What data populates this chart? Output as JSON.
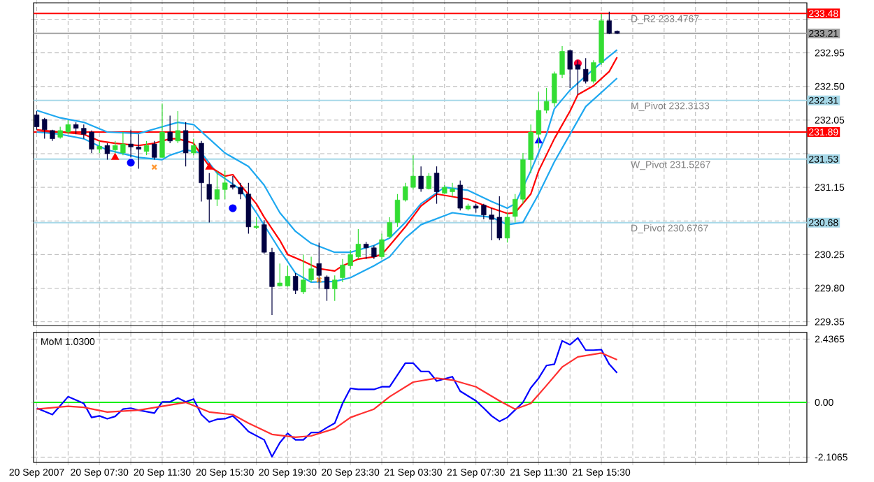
{
  "chart_data": [
    {
      "type": "candlestick",
      "grid": true,
      "tick_labels": "y",
      "x": [
        "2007-09-20T03:30",
        "2007-09-20T04:00",
        "2007-09-20T04:30",
        "2007-09-20T05:00",
        "2007-09-20T05:30",
        "2007-09-20T06:00",
        "2007-09-20T06:30",
        "2007-09-20T07:00",
        "2007-09-20T07:30",
        "2007-09-20T08:00",
        "2007-09-20T08:30",
        "2007-09-20T09:00",
        "2007-09-20T09:30",
        "2007-09-20T10:00",
        "2007-09-20T10:30",
        "2007-09-20T11:00",
        "2007-09-20T11:30",
        "2007-09-20T12:00",
        "2007-09-20T12:30",
        "2007-09-20T13:00",
        "2007-09-20T13:30",
        "2007-09-20T14:00",
        "2007-09-20T14:30",
        "2007-09-20T15:00",
        "2007-09-20T15:30",
        "2007-09-20T16:00",
        "2007-09-20T16:30",
        "2007-09-20T17:00",
        "2007-09-20T17:30",
        "2007-09-20T18:00",
        "2007-09-20T18:30",
        "2007-09-20T19:00",
        "2007-09-20T19:30",
        "2007-09-20T20:00",
        "2007-09-20T20:30",
        "2007-09-20T21:00",
        "2007-09-20T21:30",
        "2007-09-20T22:00",
        "2007-09-20T22:30",
        "2007-09-20T23:00",
        "2007-09-20T23:30",
        "2007-09-21T00:00",
        "2007-09-21T00:30",
        "2007-09-21T01:00",
        "2007-09-21T01:30",
        "2007-09-21T02:00",
        "2007-09-21T02:30",
        "2007-09-21T03:00",
        "2007-09-21T03:30",
        "2007-09-21T04:00",
        "2007-09-21T04:30",
        "2007-09-21T05:00",
        "2007-09-21T05:30",
        "2007-09-21T06:00",
        "2007-09-21T06:30",
        "2007-09-21T07:00",
        "2007-09-21T07:30",
        "2007-09-21T08:00",
        "2007-09-21T08:30",
        "2007-09-21T09:00",
        "2007-09-21T09:30",
        "2007-09-21T10:00",
        "2007-09-21T10:30",
        "2007-09-21T11:00",
        "2007-09-21T11:30",
        "2007-09-21T12:00",
        "2007-09-21T12:30",
        "2007-09-21T13:00",
        "2007-09-21T13:30",
        "2007-09-21T14:00",
        "2007-09-21T14:30",
        "2007-09-21T15:00",
        "2007-09-21T15:30",
        "2007-09-21T16:00",
        "2007-09-21T16:30"
      ],
      "ohlc": [
        [
          232.12,
          232.17,
          231.92,
          231.96
        ],
        [
          232.06,
          232.08,
          231.8,
          231.92
        ],
        [
          231.91,
          231.92,
          231.77,
          231.8
        ],
        [
          231.82,
          231.96,
          231.8,
          231.91
        ],
        [
          231.89,
          232.05,
          231.86,
          231.99
        ],
        [
          231.99,
          232.02,
          231.86,
          231.94
        ],
        [
          231.94,
          231.99,
          231.8,
          231.86
        ],
        [
          231.89,
          231.91,
          231.61,
          231.66
        ],
        [
          231.66,
          231.77,
          231.61,
          231.7
        ],
        [
          231.71,
          231.74,
          231.52,
          231.6
        ],
        [
          231.65,
          231.77,
          231.61,
          231.71
        ],
        [
          231.61,
          231.89,
          231.58,
          231.73
        ],
        [
          231.73,
          231.92,
          231.55,
          231.69
        ],
        [
          231.69,
          231.86,
          231.4,
          231.66
        ],
        [
          231.63,
          231.77,
          231.58,
          231.71
        ],
        [
          231.73,
          231.77,
          231.52,
          231.55
        ],
        [
          231.55,
          232.27,
          231.55,
          231.89
        ],
        [
          231.89,
          232.11,
          231.74,
          231.77
        ],
        [
          231.77,
          232.17,
          231.74,
          231.91
        ],
        [
          231.91,
          232.02,
          231.43,
          231.61
        ],
        [
          231.61,
          231.8,
          231.58,
          231.71
        ],
        [
          231.74,
          231.77,
          230.96,
          231.21
        ],
        [
          231.19,
          231.34,
          230.68,
          230.99
        ],
        [
          230.99,
          231.37,
          230.9,
          231.12
        ],
        [
          231.12,
          231.37,
          230.99,
          231.21
        ],
        [
          231.18,
          231.3,
          231.12,
          231.15
        ],
        [
          231.15,
          231.21,
          230.99,
          231.06
        ],
        [
          231.06,
          231.21,
          230.53,
          230.62
        ],
        [
          230.61,
          230.75,
          230.59,
          230.63
        ],
        [
          230.65,
          230.71,
          230.26,
          230.28
        ],
        [
          230.28,
          230.34,
          229.44,
          229.82
        ],
        [
          229.83,
          230.13,
          229.82,
          229.87
        ],
        [
          229.83,
          230.1,
          229.82,
          229.96
        ],
        [
          229.96,
          230.0,
          229.72,
          229.77
        ],
        [
          229.75,
          230.25,
          229.72,
          229.91
        ],
        [
          229.91,
          230.22,
          229.88,
          230.06
        ],
        [
          230.13,
          230.41,
          229.79,
          229.97
        ],
        [
          229.95,
          229.97,
          229.63,
          229.79
        ],
        [
          229.79,
          229.97,
          229.63,
          229.91
        ],
        [
          229.94,
          230.19,
          229.88,
          230.11
        ],
        [
          230.1,
          230.31,
          230.06,
          230.25
        ],
        [
          230.22,
          230.59,
          230.19,
          230.39
        ],
        [
          230.39,
          230.42,
          230.19,
          230.34
        ],
        [
          230.34,
          230.37,
          230.19,
          230.22
        ],
        [
          230.22,
          230.53,
          230.19,
          230.45
        ],
        [
          230.49,
          230.75,
          230.47,
          230.68
        ],
        [
          230.68,
          231.06,
          230.62,
          230.98
        ],
        [
          230.98,
          231.21,
          230.96,
          231.16
        ],
        [
          231.15,
          231.58,
          231.12,
          231.3
        ],
        [
          231.3,
          231.43,
          231.09,
          231.13
        ],
        [
          231.13,
          231.34,
          231.12,
          231.3
        ],
        [
          231.34,
          231.43,
          230.93,
          231.09
        ],
        [
          231.07,
          231.18,
          231.06,
          231.15
        ],
        [
          231.09,
          231.21,
          231.03,
          231.13
        ],
        [
          231.18,
          231.24,
          230.84,
          230.87
        ],
        [
          230.86,
          230.93,
          230.84,
          230.9
        ],
        [
          230.9,
          230.93,
          230.81,
          230.87
        ],
        [
          230.91,
          230.93,
          230.72,
          230.78
        ],
        [
          230.78,
          230.87,
          230.44,
          230.72
        ],
        [
          230.75,
          231.03,
          230.44,
          230.47
        ],
        [
          230.47,
          230.81,
          230.41,
          230.75
        ],
        [
          230.76,
          231.06,
          230.68,
          230.99
        ],
        [
          230.99,
          231.61,
          230.93,
          231.52
        ],
        [
          231.52,
          231.99,
          231.34,
          231.89
        ],
        [
          231.86,
          232.42,
          231.68,
          232.18
        ],
        [
          232.18,
          232.48,
          232.14,
          232.3
        ],
        [
          232.28,
          232.7,
          232.23,
          232.67
        ],
        [
          232.66,
          233.04,
          232.61,
          232.97
        ],
        [
          232.98,
          232.99,
          232.48,
          232.73
        ],
        [
          232.79,
          232.85,
          232.39,
          232.73
        ],
        [
          232.73,
          232.88,
          232.54,
          232.57
        ],
        [
          232.57,
          232.85,
          232.54,
          232.82
        ],
        [
          232.82,
          233.47,
          232.79,
          233.38
        ],
        [
          233.38,
          233.5,
          233.2,
          233.21
        ],
        [
          233.24,
          233.25,
          233.2,
          233.21
        ]
      ],
      "colors": [
        "#000040",
        "#000040",
        "#000040",
        "#33dd33",
        "#33dd33",
        "#000040",
        "#000040",
        "#000040",
        "#33dd33",
        "#000040",
        "#33dd33",
        "#33dd33",
        "#000040",
        "#000040",
        "#33dd33",
        "#000040",
        "#33dd33",
        "#000040",
        "#33dd33",
        "#000040",
        "#33dd33",
        "#000040",
        "#000040",
        "#33dd33",
        "#33dd33",
        "#000040",
        "#000040",
        "#000040",
        "#33dd33",
        "#000040",
        "#000040",
        "#33dd33",
        "#33dd33",
        "#000040",
        "#33dd33",
        "#33dd33",
        "#000040",
        "#000040",
        "#33dd33",
        "#33dd33",
        "#33dd33",
        "#33dd33",
        "#000040",
        "#000040",
        "#33dd33",
        "#33dd33",
        "#33dd33",
        "#33dd33",
        "#33dd33",
        "#000040",
        "#33dd33",
        "#000040",
        "#33dd33",
        "#33dd33",
        "#000040",
        "#33dd33",
        "#000040",
        "#000040",
        "#000040",
        "#000040",
        "#33dd33",
        "#33dd33",
        "#33dd33",
        "#33dd33",
        "#33dd33",
        "#33dd33",
        "#33dd33",
        "#33dd33",
        "#000040",
        "#000040",
        "#000040",
        "#33dd33",
        "#33dd33",
        "#000040",
        "#000040"
      ],
      "series": [
        {
          "type": "line",
          "color": "#1ea8f0",
          "x": [
            "2007-09-20T03:30",
            "2007-09-20T05:00",
            "2007-09-20T06:30",
            "2007-09-20T08:00",
            "2007-09-20T10:00",
            "2007-09-20T11:30",
            "2007-09-20T12:30",
            "2007-09-20T13:30",
            "2007-09-20T14:30",
            "2007-09-20T15:30",
            "2007-09-20T17:00",
            "2007-09-20T18:00",
            "2007-09-20T19:00",
            "2007-09-20T20:00",
            "2007-09-20T21:00",
            "2007-09-20T22:30",
            "2007-09-20T23:30",
            "2007-09-21T01:00",
            "2007-09-21T02:00",
            "2007-09-21T03:00",
            "2007-09-21T04:00",
            "2007-09-21T05:30",
            "2007-09-21T07:00",
            "2007-09-21T08:30",
            "2007-09-21T09:30",
            "2007-09-21T10:00",
            "2007-09-21T11:00",
            "2007-09-21T12:00",
            "2007-09-21T12:30",
            "2007-09-21T13:30",
            "2007-09-21T14:30",
            "2007-09-21T15:30",
            "2007-09-21T16:30"
          ],
          "values": [
            232.18,
            232.08,
            232.02,
            231.89,
            231.87,
            231.96,
            232.02,
            231.99,
            231.8,
            231.61,
            231.43,
            231.18,
            230.81,
            230.56,
            230.4,
            230.28,
            230.28,
            230.37,
            230.47,
            230.68,
            230.93,
            231.15,
            231.11,
            230.96,
            230.87,
            230.93,
            231.37,
            231.86,
            232.2,
            232.45,
            232.64,
            232.82,
            232.99
          ]
        },
        {
          "type": "line",
          "color": "#1ea8f0",
          "x": [
            "2007-09-20T03:30",
            "2007-09-20T05:00",
            "2007-09-20T06:30",
            "2007-09-20T08:00",
            "2007-09-20T10:00",
            "2007-09-20T11:30",
            "2007-09-20T12:00",
            "2007-09-20T13:00",
            "2007-09-20T14:00",
            "2007-09-20T15:00",
            "2007-09-20T16:30",
            "2007-09-20T17:30",
            "2007-09-20T19:00",
            "2007-09-20T20:00",
            "2007-09-20T21:00",
            "2007-09-20T22:30",
            "2007-09-20T23:30",
            "2007-09-21T01:00",
            "2007-09-21T02:00",
            "2007-09-21T03:00",
            "2007-09-21T04:00",
            "2007-09-21T06:00",
            "2007-09-21T07:00",
            "2007-09-21T08:30",
            "2007-09-21T09:30",
            "2007-09-21T10:30",
            "2007-09-21T11:30",
            "2007-09-21T12:30",
            "2007-09-21T13:30",
            "2007-09-21T14:30",
            "2007-09-21T15:30",
            "2007-09-21T16:30"
          ],
          "values": [
            231.89,
            231.86,
            231.8,
            231.65,
            231.55,
            231.52,
            231.58,
            231.65,
            231.61,
            231.34,
            231.12,
            230.81,
            230.31,
            230.0,
            229.88,
            229.89,
            229.94,
            230.1,
            230.22,
            230.47,
            230.65,
            230.81,
            230.78,
            230.75,
            230.65,
            230.68,
            231.06,
            231.49,
            231.86,
            232.23,
            232.42,
            232.61
          ]
        },
        {
          "type": "line",
          "color": "#ff0000",
          "x": [
            "2007-09-20T03:30",
            "2007-09-20T05:00",
            "2007-09-20T06:30",
            "2007-09-20T07:30",
            "2007-09-20T08:30",
            "2007-09-20T10:00",
            "2007-09-20T11:00",
            "2007-09-20T12:00",
            "2007-09-20T12:30",
            "2007-09-20T13:30",
            "2007-09-20T14:00",
            "2007-09-20T14:30",
            "2007-09-20T15:30",
            "2007-09-20T16:00",
            "2007-09-20T16:30",
            "2007-09-20T17:30",
            "2007-09-20T18:00",
            "2007-09-20T19:00",
            "2007-09-20T19:30",
            "2007-09-20T20:30",
            "2007-09-20T21:30",
            "2007-09-20T22:30",
            "2007-09-20T23:00",
            "2007-09-21T00:00",
            "2007-09-21T01:00",
            "2007-09-21T01:30",
            "2007-09-21T02:00",
            "2007-09-21T03:00",
            "2007-09-21T04:00",
            "2007-09-21T05:00",
            "2007-09-21T07:00",
            "2007-09-21T08:30",
            "2007-09-21T09:30",
            "2007-09-21T10:00",
            "2007-09-21T11:00",
            "2007-09-21T11:30",
            "2007-09-21T12:30",
            "2007-09-21T13:30",
            "2007-09-21T14:00",
            "2007-09-21T15:00",
            "2007-09-21T16:00",
            "2007-09-21T16:30"
          ],
          "values": [
            231.92,
            231.89,
            231.86,
            231.77,
            231.74,
            231.71,
            231.74,
            231.8,
            231.8,
            231.74,
            231.58,
            231.43,
            231.3,
            231.32,
            231.18,
            230.93,
            230.75,
            230.44,
            230.25,
            230.16,
            230.06,
            230.03,
            230.1,
            230.19,
            230.22,
            230.25,
            230.37,
            230.62,
            230.9,
            231.06,
            230.99,
            230.87,
            230.8,
            230.81,
            231.06,
            231.37,
            231.8,
            232.17,
            232.39,
            232.51,
            232.7,
            232.89
          ]
        },
        {
          "type": "scatter",
          "marker": "circle",
          "color": "#0000ff",
          "x": [
            "2007-09-20T09:30",
            "2007-09-20T16:00"
          ],
          "values": [
            231.48,
            230.87
          ]
        },
        {
          "type": "scatter",
          "marker": "circle",
          "color": "#ff0033",
          "x": [
            "2007-09-21T14:00"
          ],
          "values": [
            232.81
          ]
        },
        {
          "type": "scatter",
          "marker": "cross",
          "color": "#ff9933",
          "x": [
            "2007-09-20T11:00",
            "2007-09-20T21:30"
          ],
          "values": [
            231.42,
            229.91
          ]
        },
        {
          "type": "scatter",
          "marker": "triangle",
          "color": "#ff0000",
          "x": [
            "2007-09-20T08:30",
            "2007-09-20T14:30"
          ],
          "values": [
            231.55,
            231.42
          ]
        },
        {
          "type": "scatter",
          "marker": "triangle",
          "color": "#0000ff",
          "x": [
            "2007-09-21T11:30"
          ],
          "values": [
            231.77
          ]
        }
      ],
      "ref_lines": [
        {
          "axis": "y",
          "value": 233.4767,
          "label": "D_R2 233.4767",
          "color": "#ff0000"
        },
        {
          "axis": "y",
          "value": 233.21,
          "color": "#a0a0a0"
        },
        {
          "axis": "y",
          "value": 232.3133,
          "label": "M_Pivot 232.3133",
          "color": "#a6d8e8"
        },
        {
          "axis": "y",
          "value": 231.89,
          "color": "#ff0000"
        },
        {
          "axis": "y",
          "value": 231.5267,
          "label": "W_Pivot 231.5267",
          "color": "#a6d8e8"
        },
        {
          "axis": "y",
          "value": 230.6767,
          "label": "D_Pivot 230.6767",
          "color": "#a6d8e8"
        }
      ],
      "annotations": [
        "233.48",
        "233.21",
        "232.31",
        "231.89",
        "231.53",
        "230.68"
      ],
      "xlim": [
        "2007-09-20T03:18",
        "2007-09-22T04:36"
      ],
      "ylim": [
        229.3,
        233.62
      ],
      "yticks": [
        229.35,
        {
          "value": 229.8,
          "label": "229.80"
        },
        230.25,
        {
          "value": 230.7,
          "label": null
        },
        231.15,
        {
          "value": 231.6,
          "label": null
        },
        232.05,
        {
          "value": 232.5,
          "label": "232.50"
        },
        232.95,
        {
          "value": 233.4,
          "label": null
        }
      ]
    },
    {
      "type": "line",
      "title": "MoM 1.0300",
      "grid": true,
      "series": [
        {
          "color": "#0000ff",
          "x": [
            "2007-09-20T03:30",
            "2007-09-20T04:30",
            "2007-09-20T05:30",
            "2007-09-20T06:30",
            "2007-09-20T07:00",
            "2007-09-20T07:30",
            "2007-09-20T08:00",
            "2007-09-20T08:30",
            "2007-09-20T09:00",
            "2007-09-20T09:30",
            "2007-09-20T10:00",
            "2007-09-20T11:00",
            "2007-09-20T11:30",
            "2007-09-20T12:00",
            "2007-09-20T12:30",
            "2007-09-20T13:00",
            "2007-09-20T13:30",
            "2007-09-20T14:00",
            "2007-09-20T14:30",
            "2007-09-20T15:00",
            "2007-09-20T15:30",
            "2007-09-20T16:00",
            "2007-09-20T16:30",
            "2007-09-20T17:00",
            "2007-09-20T18:00",
            "2007-09-20T18:30",
            "2007-09-20T19:00",
            "2007-09-20T19:30",
            "2007-09-20T20:00",
            "2007-09-20T20:30",
            "2007-09-20T21:00",
            "2007-09-20T21:30",
            "2007-09-20T22:00",
            "2007-09-20T22:30",
            "2007-09-20T23:00",
            "2007-09-20T23:30",
            "2007-09-21T00:00",
            "2007-09-21T01:00",
            "2007-09-21T01:30",
            "2007-09-21T02:00",
            "2007-09-21T03:00",
            "2007-09-21T03:30",
            "2007-09-21T04:00",
            "2007-09-21T04:30",
            "2007-09-21T05:00",
            "2007-09-21T06:00",
            "2007-09-21T06:30",
            "2007-09-21T07:30",
            "2007-09-21T08:00",
            "2007-09-21T08:30",
            "2007-09-21T09:00",
            "2007-09-21T09:30",
            "2007-09-21T10:30",
            "2007-09-21T11:00",
            "2007-09-21T11:30",
            "2007-09-21T12:00",
            "2007-09-21T12:30",
            "2007-09-21T13:00",
            "2007-09-21T13:30",
            "2007-09-21T14:00",
            "2007-09-21T14:30",
            "2007-09-21T15:00",
            "2007-09-21T15:30",
            "2007-09-21T16:00",
            "2007-09-21T16:30"
          ],
          "values": [
            -0.22,
            -0.47,
            0.22,
            -0.04,
            -0.58,
            -0.52,
            -0.63,
            -0.54,
            -0.26,
            -0.22,
            -0.3,
            -0.41,
            0.02,
            0.02,
            0.17,
            0.02,
            0.13,
            -0.47,
            -0.75,
            -0.65,
            -0.63,
            -0.52,
            -0.8,
            -1.12,
            -1.44,
            -2.09,
            -1.55,
            -1.19,
            -1.44,
            -1.44,
            -1.16,
            -1.16,
            -0.97,
            -0.8,
            -0.04,
            0.54,
            0.5,
            0.5,
            0.6,
            0.6,
            1.51,
            1.51,
            1.19,
            1.19,
            0.82,
            0.99,
            0.43,
            0.06,
            -0.22,
            -0.52,
            -0.73,
            -0.58,
            0.0,
            0.56,
            0.93,
            1.42,
            1.47,
            2.37,
            2.22,
            2.48,
            2.01,
            2.01,
            2.03,
            1.47,
            1.14
          ]
        },
        {
          "color": "#ff3030",
          "x": [
            "2007-09-20T03:30",
            "2007-09-20T05:30",
            "2007-09-20T06:30",
            "2007-09-20T08:00",
            "2007-09-20T10:00",
            "2007-09-20T11:30",
            "2007-09-20T13:00",
            "2007-09-20T14:30",
            "2007-09-20T16:00",
            "2007-09-20T17:00",
            "2007-09-20T18:30",
            "2007-09-20T20:00",
            "2007-09-20T21:00",
            "2007-09-20T22:30",
            "2007-09-20T23:30",
            "2007-09-21T01:00",
            "2007-09-21T02:00",
            "2007-09-21T03:30",
            "2007-09-21T05:00",
            "2007-09-21T06:00",
            "2007-09-21T07:30",
            "2007-09-21T09:00",
            "2007-09-21T10:00",
            "2007-09-21T11:00",
            "2007-09-21T12:00",
            "2007-09-21T13:00",
            "2007-09-21T14:00",
            "2007-09-21T15:30",
            "2007-09-21T16:30"
          ],
          "values": [
            -0.26,
            -0.15,
            -0.19,
            -0.37,
            -0.3,
            -0.15,
            0.0,
            -0.37,
            -0.47,
            -0.8,
            -1.23,
            -1.34,
            -1.29,
            -1.01,
            -0.58,
            -0.26,
            0.22,
            0.78,
            0.93,
            0.86,
            0.6,
            0.06,
            -0.26,
            -0.04,
            0.65,
            1.36,
            1.75,
            1.9,
            1.64
          ]
        }
      ],
      "ref_lines": [
        {
          "axis": "y",
          "value": 0,
          "color": "#00ee00"
        }
      ],
      "xlim": [
        "2007-09-20T03:18",
        "2007-09-22T04:36"
      ],
      "xticks": [
        {
          "value": "2007-09-20T03:30",
          "label": "20 Sep 2007"
        },
        {
          "value": "2007-09-20T05:30",
          "label": null
        },
        {
          "value": "2007-09-20T07:30",
          "label": "20 Sep 07:30"
        },
        {
          "value": "2007-09-20T09:30",
          "label": null
        },
        {
          "value": "2007-09-20T11:30",
          "label": "20 Sep 11:30"
        },
        {
          "value": "2007-09-20T13:30",
          "label": null
        },
        {
          "value": "2007-09-20T15:30",
          "label": "20 Sep 15:30"
        },
        {
          "value": "2007-09-20T17:30",
          "label": null
        },
        {
          "value": "2007-09-20T19:30",
          "label": "20 Sep 19:30"
        },
        {
          "value": "2007-09-20T21:30",
          "label": null
        },
        {
          "value": "2007-09-20T23:30",
          "label": "20 Sep 23:30"
        },
        {
          "value": "2007-09-21T01:30",
          "label": null
        },
        {
          "value": "2007-09-21T03:30",
          "label": "21 Sep 03:30"
        },
        {
          "value": "2007-09-21T05:30",
          "label": null
        },
        {
          "value": "2007-09-21T07:30",
          "label": "21 Sep 07:30"
        },
        {
          "value": "2007-09-21T09:30",
          "label": null
        },
        {
          "value": "2007-09-21T11:30",
          "label": "21 Sep 11:30"
        },
        {
          "value": "2007-09-21T13:30",
          "label": null
        },
        {
          "value": "2007-09-21T15:30",
          "label": "21 Sep 15:30"
        },
        {
          "value": "2007-09-21T17:30",
          "label": null
        },
        {
          "value": "2007-09-21T19:30",
          "label": null
        },
        {
          "value": "2007-09-21T21:30",
          "label": null
        },
        {
          "value": "2007-09-21T23:30",
          "label": null
        },
        {
          "value": "2007-09-22T01:30",
          "label": null
        },
        {
          "value": "2007-09-22T03:30",
          "label": null
        }
      ],
      "ylim": [
        -2.31,
        2.69
      ],
      "yticks": [
        -2.1065,
        {
          "value": 0,
          "label": "0.00"
        },
        2.4365
      ]
    }
  ]
}
